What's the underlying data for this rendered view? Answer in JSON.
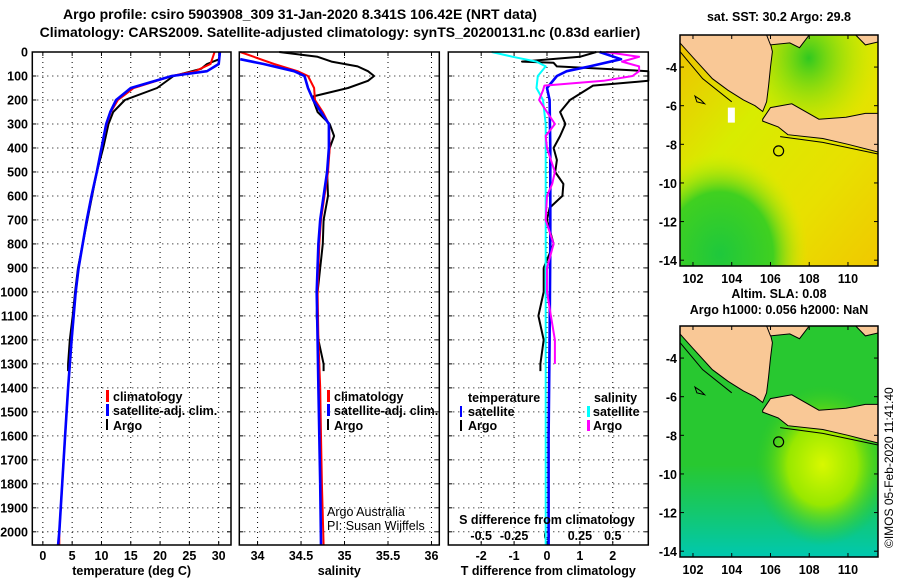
{
  "title": {
    "line1": "Argo profile: csiro 5903908_309 31-Jan-2020 8.341S 106.42E (NRT data)",
    "line2": "Climatology: CARS2009. Satellite-adjusted climatology: synTS_20200131.nc (0.83d earlier)"
  },
  "chart_data": [
    {
      "type": "line",
      "panel": "temperature",
      "xlabel": "temperature (deg C)",
      "ylabel": "depth",
      "xlim": [
        -1.8,
        32.1
      ],
      "ylim": [
        2055,
        0
      ],
      "xticks": [
        0,
        5,
        10,
        15,
        20,
        25,
        30
      ],
      "yticks": [
        0,
        100,
        200,
        300,
        400,
        500,
        600,
        700,
        800,
        900,
        1000,
        1100,
        1200,
        1300,
        1400,
        1500,
        1600,
        1700,
        1800,
        1900,
        2000
      ],
      "grid": true,
      "legend": [
        "climatology",
        "satellite-adj. clim.",
        "Argo"
      ],
      "series": [
        {
          "name": "Argo",
          "color": "#000000",
          "depth": [
            0,
            30,
            50,
            70,
            100,
            150,
            200,
            250,
            300,
            400,
            500,
            600,
            700,
            800,
            900,
            1000,
            1100,
            1200,
            1300,
            1330
          ],
          "values": [
            30.2,
            30.1,
            28,
            27,
            22.3,
            19.5,
            14,
            12,
            11.2,
            10.3,
            9.2,
            8.4,
            7.6,
            6.8,
            6.0,
            5.5,
            5.1,
            4.6,
            4.3,
            4.3
          ]
        },
        {
          "name": "climatology",
          "color": "#ff0000",
          "depth": [
            0,
            50,
            80,
            100,
            150,
            200,
            250,
            300,
            400,
            500,
            600,
            700,
            800,
            900,
            1000,
            1200,
            1400,
            1600,
            1800,
            2000,
            2055
          ],
          "values": [
            29.3,
            28.6,
            26,
            22,
            15.5,
            12.8,
            11.6,
            10.9,
            10.0,
            9.2,
            8.3,
            7.5,
            6.8,
            6.1,
            5.6,
            4.9,
            4.3,
            3.8,
            3.3,
            2.8,
            2.8
          ]
        },
        {
          "name": "satellite-adj. clim.",
          "color": "#0000ff",
          "depth": [
            0,
            50,
            80,
            100,
            150,
            200,
            250,
            300,
            400,
            500,
            600,
            700,
            800,
            900,
            1000,
            1200,
            1400,
            1600,
            1800,
            2000,
            2055
          ],
          "values": [
            30.2,
            30.0,
            28.0,
            22.0,
            15.0,
            12.5,
            11.5,
            10.8,
            10.0,
            9.2,
            8.3,
            7.5,
            6.8,
            6.1,
            5.6,
            4.9,
            4.3,
            3.8,
            3.3,
            2.8,
            2.6
          ]
        }
      ]
    },
    {
      "type": "line",
      "panel": "salinity",
      "xlabel": "salinity",
      "xlim": [
        33.79,
        36.09
      ],
      "ylim": [
        2055,
        0
      ],
      "xticks": [
        34,
        34.5,
        35,
        35.5,
        36
      ],
      "grid": true,
      "legend": [
        "climatology",
        "satellite-adj. clim.",
        "Argo"
      ],
      "annotation": [
        "Argo Australia",
        "PI: Susan Wijffels"
      ],
      "series": [
        {
          "name": "Argo",
          "color": "#000000",
          "depth": [
            0,
            20,
            40,
            60,
            80,
            100,
            120,
            150,
            185,
            200,
            250,
            300,
            350,
            400,
            500,
            600,
            700,
            800,
            900,
            1000,
            1100,
            1200,
            1300,
            1330
          ],
          "values": [
            34.25,
            34.69,
            34.85,
            35.15,
            35.27,
            35.34,
            35.27,
            35.04,
            34.64,
            34.64,
            34.69,
            34.83,
            34.88,
            34.83,
            34.8,
            34.81,
            34.76,
            34.75,
            34.72,
            34.69,
            34.68,
            34.7,
            34.76,
            34.76
          ]
        },
        {
          "name": "climatology",
          "color": "#ff0000",
          "depth": [
            0,
            50,
            80,
            100,
            150,
            200,
            250,
            300,
            400,
            500,
            600,
            700,
            800,
            1000,
            1200,
            1400,
            1600,
            1800,
            2055
          ],
          "values": [
            33.8,
            34.19,
            34.46,
            34.58,
            34.65,
            34.66,
            34.75,
            34.82,
            34.83,
            34.81,
            34.77,
            34.73,
            34.71,
            34.69,
            34.7,
            34.72,
            34.73,
            34.74,
            34.76
          ]
        },
        {
          "name": "satellite-adj. clim.",
          "color": "#0000ff",
          "depth": [
            30,
            50,
            80,
            100,
            150,
            200,
            250,
            300,
            400,
            500,
            600,
            700,
            800,
            1000,
            1200,
            1400,
            1600,
            1800,
            2055
          ],
          "values": [
            33.8,
            34.07,
            34.42,
            34.54,
            34.58,
            34.64,
            34.73,
            34.82,
            34.82,
            34.8,
            34.76,
            34.72,
            34.7,
            34.68,
            34.69,
            34.7,
            34.71,
            34.72,
            34.73
          ]
        }
      ]
    },
    {
      "type": "line",
      "panel": "difference",
      "xlabel": "T difference from climatology",
      "x2label": "S difference from climatology",
      "xlim": [
        -3.0,
        3.08
      ],
      "x2lim": [
        -0.75,
        0.77
      ],
      "ylim": [
        2055,
        0
      ],
      "xticks": [
        -2,
        -1,
        0,
        1,
        2
      ],
      "x2ticks": [
        -0.5,
        -0.25,
        0,
        0.25,
        0.5
      ],
      "grid": true,
      "legend_t": {
        "heading": "temperature",
        "items": [
          "satellite",
          "Argo"
        ]
      },
      "legend_s": {
        "heading": "salinity",
        "items": [
          "satellite",
          "Argo"
        ]
      },
      "series": [
        {
          "name": "T Argo",
          "axis": "T",
          "color": "#000000",
          "depth": [
            0,
            20,
            40,
            45,
            60,
            80,
            120,
            140,
            200,
            250,
            300,
            350,
            400,
            450,
            500,
            550,
            600,
            650,
            700,
            800,
            900,
            1000,
            1100,
            1200,
            1300,
            1330
          ],
          "values": [
            1.5,
            1.0,
            -0.76,
            0.2,
            0.3,
            3.1,
            3.1,
            1.4,
            0.7,
            0.4,
            0.56,
            0.4,
            0.2,
            0.3,
            0.25,
            0.5,
            0.47,
            0.08,
            0.0,
            0.2,
            -0.1,
            -0.1,
            -0.26,
            -0.1,
            -0.2,
            -0.2
          ]
        },
        {
          "name": "S satellite",
          "axis": "S",
          "color": "#00ffff",
          "depth": [
            0,
            20,
            40,
            60,
            100,
            150,
            200,
            300,
            2055
          ],
          "values": [
            -0.42,
            -0.26,
            -0.08,
            -0.01,
            -0.07,
            -0.08,
            -0.03,
            -0.01,
            -0.01
          ]
        },
        {
          "name": "T satellite",
          "axis": "T",
          "color": "#0000ff",
          "depth": [
            0,
            30,
            60,
            80,
            100,
            150,
            200,
            400,
            800,
            1200,
            1600,
            2055
          ],
          "values": [
            1.6,
            2.25,
            1.3,
            0.6,
            0.3,
            0.0,
            0.08,
            0.1,
            0.1,
            0.08,
            0.05,
            0.05
          ]
        },
        {
          "name": "S Argo",
          "axis": "S",
          "color": "#ff00ff",
          "depth": [
            0,
            20,
            40,
            60,
            80,
            100,
            120,
            140,
            160,
            200,
            250,
            300,
            350,
            400,
            450,
            500,
            550,
            600,
            700,
            800,
            900,
            1000,
            1100,
            1200,
            1300
          ],
          "values": [
            0.45,
            0.7,
            0.57,
            0.7,
            0.7,
            0.65,
            0.43,
            -0.02,
            -0.03,
            -0.06,
            0.0,
            0.06,
            -0.01,
            0.0,
            0.03,
            0.06,
            0.04,
            0.0,
            -0.01,
            0.05,
            0.0,
            0.0,
            0.03,
            0.06,
            0.06
          ]
        }
      ]
    }
  ],
  "maps": [
    {
      "title": [
        "sat. SST: 30.2 Argo: 29.8"
      ],
      "xlim": [
        101.33,
        111.55
      ],
      "ylim": [
        -14.3,
        -2.34
      ],
      "lon_ticks": [
        102,
        104,
        106,
        108,
        110
      ],
      "lat_ticks": [
        -4,
        -6,
        -8,
        -10,
        -12,
        -14
      ],
      "argo": {
        "lon": 106.42,
        "lat": -8.341
      }
    },
    {
      "title": [
        "Altim. SLA: 0.08",
        "Argo h1000: 0.056 h2000: NaN"
      ],
      "xlim": [
        101.33,
        111.55
      ],
      "ylim": [
        -14.3,
        -2.34
      ],
      "lon_ticks": [
        102,
        104,
        106,
        108,
        110
      ],
      "lat_ticks": [
        -4,
        -6,
        -8,
        -10,
        -12,
        -14
      ],
      "argo": {
        "lon": 106.42,
        "lat": -8.341
      }
    }
  ],
  "credit": "©IMOS 05-Feb-2020 11:41:40"
}
